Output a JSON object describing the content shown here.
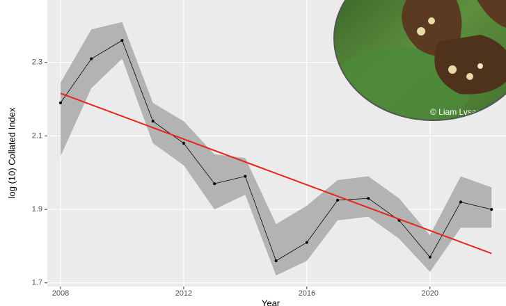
{
  "chart_data": {
    "type": "line",
    "xlabel": "Year",
    "ylabel": "log (10) Collated Index",
    "credit": "© Liam Lysaght",
    "x": [
      2008,
      2009,
      2010,
      2011,
      2012,
      2013,
      2014,
      2015,
      2016,
      2017,
      2018,
      2019,
      2020,
      2021,
      2022
    ],
    "values": [
      2.19,
      2.31,
      2.36,
      2.14,
      2.08,
      1.97,
      1.99,
      1.76,
      1.81,
      1.925,
      1.93,
      1.87,
      1.77,
      1.92,
      1.9
    ],
    "upper": [
      2.245,
      2.39,
      2.41,
      2.19,
      2.14,
      2.05,
      2.04,
      1.86,
      1.91,
      1.98,
      1.99,
      1.93,
      1.83,
      1.99,
      1.96
    ],
    "lower": [
      2.045,
      2.23,
      2.31,
      2.08,
      2.02,
      1.9,
      1.94,
      1.72,
      1.76,
      1.87,
      1.88,
      1.82,
      1.73,
      1.85,
      1.85
    ],
    "color": "#000000",
    "band_color": "#b3b3b3",
    "trend": {
      "x": [
        2008,
        2022
      ],
      "values": [
        2.216,
        1.78
      ],
      "color": "#e8241b"
    },
    "xlim": [
      2007.57,
      2022.47
    ],
    "ylim": [
      1.69,
      2.47
    ],
    "xticks": [
      2008,
      2012,
      2016,
      2020
    ],
    "yticks": [
      1.7,
      1.9,
      2.1,
      2.3
    ],
    "grid": true
  }
}
